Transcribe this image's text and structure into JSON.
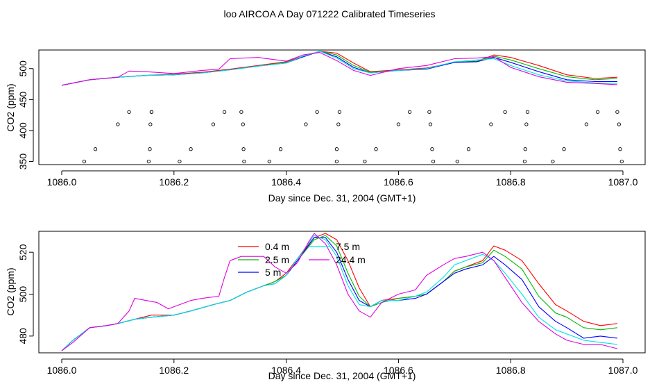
{
  "title": "loo AIRCOA A  Day 071222  Calibrated Timeseries",
  "colors": {
    "0.4 m": "#ff0000",
    "2.5 m": "#00bb00",
    "5 m": "#0000ff",
    "7.5 m": "#00e5e5",
    "24.4 m": "#e000e0"
  },
  "chart_data": [
    {
      "type": "line",
      "xlabel": "Day since Dec. 31, 2004 (GMT+1)",
      "ylabel": "CO2 (ppm)",
      "xlim": [
        1086.0,
        1087.0
      ],
      "ylim": [
        345,
        530
      ],
      "x_ticks": [
        "1086.0",
        "1086.2",
        "1086.4",
        "1086.6",
        "1086.8",
        "1087.0"
      ],
      "y_ticks": [
        "350",
        "400",
        "450",
        "500"
      ],
      "x_tick_values": [
        1086.0,
        1086.2,
        1086.4,
        1086.6,
        1086.8,
        1087.0
      ],
      "y_tick_values": [
        350,
        400,
        450,
        500
      ],
      "series": [
        {
          "name": "0.4 m",
          "x": [
            1086.0,
            1086.05,
            1086.1,
            1086.15,
            1086.2,
            1086.25,
            1086.3,
            1086.35,
            1086.4,
            1086.43,
            1086.46,
            1086.49,
            1086.52,
            1086.55,
            1086.6,
            1086.65,
            1086.7,
            1086.74,
            1086.77,
            1086.8,
            1086.85,
            1086.9,
            1086.95,
            1086.99
          ],
          "y": [
            473,
            482,
            486,
            489,
            491,
            494,
            499,
            505,
            511,
            520,
            528,
            525,
            509,
            495,
            498,
            501,
            510,
            512,
            522,
            518,
            505,
            490,
            484,
            486
          ]
        },
        {
          "name": "2.5 m",
          "x": [
            1086.0,
            1086.05,
            1086.1,
            1086.15,
            1086.2,
            1086.25,
            1086.3,
            1086.35,
            1086.4,
            1086.43,
            1086.46,
            1086.49,
            1086.52,
            1086.55,
            1086.6,
            1086.65,
            1086.7,
            1086.74,
            1086.77,
            1086.8,
            1086.85,
            1086.9,
            1086.95,
            1086.99
          ],
          "y": [
            473,
            482,
            486,
            489,
            490,
            493,
            498,
            504,
            510,
            519,
            528,
            522,
            505,
            494,
            497,
            500,
            510,
            512,
            520,
            514,
            500,
            487,
            482,
            484
          ]
        },
        {
          "name": "5 m",
          "x": [
            1086.0,
            1086.05,
            1086.1,
            1086.15,
            1086.2,
            1086.25,
            1086.3,
            1086.35,
            1086.4,
            1086.43,
            1086.46,
            1086.49,
            1086.52,
            1086.55,
            1086.6,
            1086.65,
            1086.7,
            1086.74,
            1086.77,
            1086.8,
            1086.85,
            1086.9,
            1086.95,
            1086.99
          ],
          "y": [
            473,
            482,
            486,
            489,
            490,
            493,
            498,
            504,
            509,
            519,
            528,
            519,
            502,
            493,
            497,
            499,
            510,
            511,
            518,
            510,
            495,
            482,
            479,
            479
          ]
        },
        {
          "name": "7.5 m",
          "x": [
            1086.0,
            1086.05,
            1086.1,
            1086.15,
            1086.2,
            1086.25,
            1086.3,
            1086.35,
            1086.4,
            1086.43,
            1086.46,
            1086.49,
            1086.52,
            1086.55,
            1086.6,
            1086.65,
            1086.7,
            1086.74,
            1086.77,
            1086.8,
            1086.85,
            1086.9,
            1086.95,
            1086.99
          ],
          "y": [
            473,
            482,
            486,
            489,
            490,
            493,
            498,
            504,
            509,
            520,
            528,
            517,
            500,
            493,
            497,
            500,
            511,
            514,
            516,
            505,
            490,
            480,
            477,
            476
          ]
        },
        {
          "name": "24.4 m",
          "x": [
            1086.0,
            1086.05,
            1086.1,
            1086.12,
            1086.15,
            1086.2,
            1086.25,
            1086.28,
            1086.3,
            1086.35,
            1086.4,
            1086.43,
            1086.46,
            1086.49,
            1086.52,
            1086.55,
            1086.6,
            1086.65,
            1086.7,
            1086.74,
            1086.77,
            1086.8,
            1086.85,
            1086.9,
            1086.95,
            1086.99
          ],
          "y": [
            473,
            482,
            486,
            496,
            495,
            492,
            497,
            499,
            516,
            518,
            512,
            522,
            526,
            513,
            497,
            489,
            500,
            505,
            516,
            517,
            519,
            502,
            487,
            478,
            476,
            474
          ]
        }
      ],
      "points": {
        "x": [
          1086.04,
          1086.06,
          1086.1,
          1086.12,
          1086.155,
          1086.157,
          1086.158,
          1086.16,
          1086.16,
          1086.21,
          1086.23,
          1086.27,
          1086.29,
          1086.32,
          1086.323,
          1086.324,
          1086.325,
          1086.37,
          1086.39,
          1086.435,
          1086.455,
          1086.49,
          1086.49,
          1086.493,
          1086.495,
          1086.54,
          1086.56,
          1086.6,
          1086.62,
          1086.655,
          1086.657,
          1086.66,
          1086.662,
          1086.705,
          1086.725,
          1086.765,
          1086.79,
          1086.825,
          1086.826,
          1086.828,
          1086.83,
          1086.875,
          1086.895,
          1086.935,
          1086.955,
          1086.99,
          1086.993,
          1086.995,
          1086.998
        ],
        "y": [
          350,
          370,
          410,
          430,
          350,
          370,
          410,
          430,
          430,
          350,
          370,
          410,
          430,
          430,
          410,
          370,
          350,
          350,
          370,
          410,
          430,
          350,
          370,
          410,
          430,
          350,
          370,
          410,
          430,
          430,
          410,
          370,
          350,
          350,
          370,
          410,
          430,
          350,
          370,
          410,
          430,
          350,
          370,
          410,
          430,
          430,
          410,
          370,
          350
        ]
      }
    },
    {
      "type": "line",
      "xlabel": "Day since Dec. 31, 2004 (GMT+1)",
      "ylabel": "CO2 (ppm)",
      "xlim": [
        1086.0,
        1087.0
      ],
      "ylim": [
        472,
        530
      ],
      "x_ticks": [
        "1086.0",
        "1086.2",
        "1086.4",
        "1086.6",
        "1086.8",
        "1087.0"
      ],
      "y_ticks": [
        "480",
        "500",
        "520"
      ],
      "x_tick_values": [
        1086.0,
        1086.2,
        1086.4,
        1086.6,
        1086.8,
        1087.0
      ],
      "y_tick_values": [
        480,
        500,
        520
      ],
      "legend": "top-center",
      "series": [
        {
          "name": "0.4 m",
          "x": [
            1086.0,
            1086.02,
            1086.05,
            1086.08,
            1086.1,
            1086.13,
            1086.16,
            1086.2,
            1086.23,
            1086.27,
            1086.3,
            1086.33,
            1086.36,
            1086.38,
            1086.4,
            1086.42,
            1086.45,
            1086.47,
            1086.49,
            1086.51,
            1086.53,
            1086.55,
            1086.57,
            1086.6,
            1086.63,
            1086.65,
            1086.68,
            1086.7,
            1086.72,
            1086.75,
            1086.77,
            1086.79,
            1086.82,
            1086.85,
            1086.88,
            1086.9,
            1086.93,
            1086.96,
            1086.99
          ],
          "y": [
            473,
            478,
            484,
            485,
            486,
            488,
            490,
            490,
            492,
            495,
            497,
            501,
            504,
            506,
            510,
            517,
            527,
            529,
            526,
            516,
            503,
            494,
            497,
            498,
            499,
            500,
            506,
            511,
            513,
            516,
            523,
            521,
            516,
            505,
            495,
            492,
            487,
            485,
            486
          ]
        },
        {
          "name": "2.5 m",
          "x": [
            1086.0,
            1086.02,
            1086.05,
            1086.08,
            1086.1,
            1086.13,
            1086.16,
            1086.2,
            1086.23,
            1086.27,
            1086.3,
            1086.33,
            1086.36,
            1086.38,
            1086.4,
            1086.42,
            1086.45,
            1086.47,
            1086.49,
            1086.51,
            1086.53,
            1086.55,
            1086.57,
            1086.6,
            1086.63,
            1086.65,
            1086.68,
            1086.7,
            1086.72,
            1086.75,
            1086.77,
            1086.79,
            1086.82,
            1086.85,
            1086.88,
            1086.9,
            1086.93,
            1086.96,
            1086.99
          ],
          "y": [
            473,
            478,
            484,
            485,
            486,
            488,
            489,
            490,
            492,
            495,
            497,
            501,
            504,
            506,
            509,
            516,
            526,
            528,
            523,
            510,
            499,
            494,
            496,
            498,
            499,
            500,
            506,
            511,
            513,
            515,
            521,
            518,
            512,
            499,
            491,
            489,
            484,
            483,
            484
          ]
        },
        {
          "name": "5 m",
          "x": [
            1086.0,
            1086.02,
            1086.05,
            1086.08,
            1086.1,
            1086.13,
            1086.16,
            1086.2,
            1086.23,
            1086.27,
            1086.3,
            1086.33,
            1086.36,
            1086.38,
            1086.4,
            1086.42,
            1086.45,
            1086.47,
            1086.49,
            1086.51,
            1086.53,
            1086.55,
            1086.57,
            1086.6,
            1086.63,
            1086.65,
            1086.68,
            1086.7,
            1086.72,
            1086.75,
            1086.77,
            1086.79,
            1086.82,
            1086.85,
            1086.88,
            1086.9,
            1086.93,
            1086.96,
            1086.99
          ],
          "y": [
            473,
            478,
            484,
            485,
            486,
            488,
            489,
            490,
            492,
            495,
            497,
            501,
            504,
            505,
            509,
            516,
            527,
            527,
            520,
            507,
            497,
            494,
            497,
            497,
            498,
            500,
            506,
            510,
            512,
            514,
            518,
            514,
            507,
            494,
            487,
            484,
            479,
            480,
            479
          ]
        },
        {
          "name": "7.5 m",
          "x": [
            1086.0,
            1086.02,
            1086.05,
            1086.08,
            1086.1,
            1086.13,
            1086.16,
            1086.2,
            1086.23,
            1086.27,
            1086.3,
            1086.33,
            1086.36,
            1086.38,
            1086.4,
            1086.42,
            1086.45,
            1086.47,
            1086.49,
            1086.51,
            1086.53,
            1086.55,
            1086.57,
            1086.6,
            1086.63,
            1086.65,
            1086.68,
            1086.7,
            1086.72,
            1086.75,
            1086.77,
            1086.79,
            1086.82,
            1086.85,
            1086.88,
            1086.9,
            1086.93,
            1086.96,
            1086.99
          ],
          "y": [
            473,
            478,
            484,
            485,
            486,
            488,
            489,
            490,
            492,
            495,
            497,
            501,
            504,
            505,
            509,
            517,
            528,
            526,
            518,
            504,
            495,
            494,
            497,
            497,
            499,
            501,
            508,
            514,
            516,
            519,
            516,
            510,
            500,
            489,
            483,
            481,
            478,
            477,
            476
          ]
        },
        {
          "name": "24.4 m",
          "x": [
            1086.0,
            1086.02,
            1086.05,
            1086.08,
            1086.1,
            1086.12,
            1086.13,
            1086.15,
            1086.17,
            1086.19,
            1086.21,
            1086.23,
            1086.25,
            1086.28,
            1086.29,
            1086.3,
            1086.32,
            1086.34,
            1086.36,
            1086.38,
            1086.4,
            1086.42,
            1086.44,
            1086.45,
            1086.47,
            1086.49,
            1086.51,
            1086.53,
            1086.55,
            1086.57,
            1086.6,
            1086.63,
            1086.65,
            1086.68,
            1086.7,
            1086.72,
            1086.75,
            1086.77,
            1086.79,
            1086.82,
            1086.85,
            1086.88,
            1086.9,
            1086.93,
            1086.96,
            1086.99
          ],
          "y": [
            473,
            477,
            484,
            485,
            486,
            492,
            498,
            497,
            496,
            493,
            495,
            497,
            498,
            499,
            508,
            516,
            518,
            518,
            518,
            513,
            510,
            515,
            525,
            529,
            524,
            514,
            500,
            492,
            489,
            496,
            500,
            502,
            509,
            514,
            517,
            518,
            520,
            516,
            508,
            496,
            487,
            481,
            478,
            476,
            476,
            474
          ]
        }
      ]
    }
  ]
}
